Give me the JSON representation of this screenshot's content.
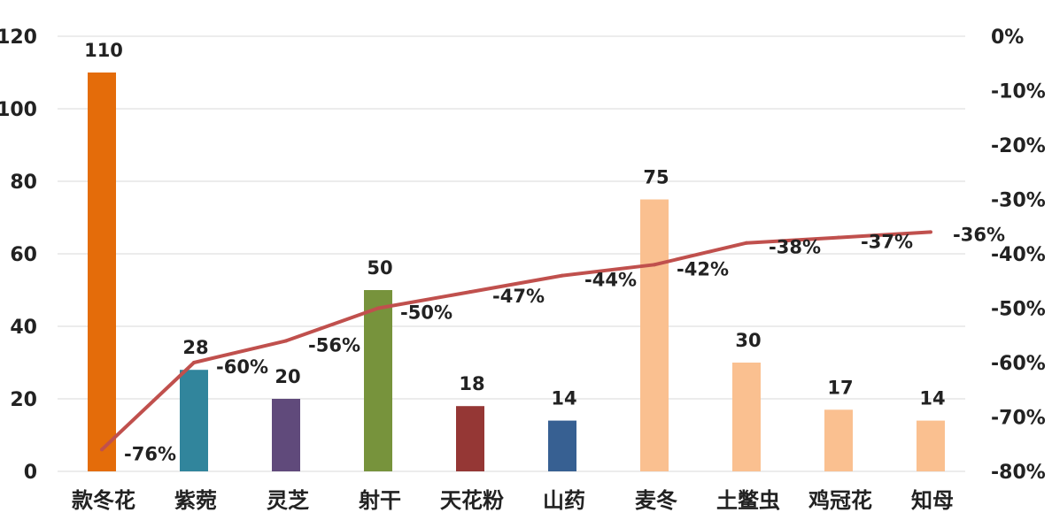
{
  "chart_data": {
    "type": "bar",
    "categories": [
      "款冬花",
      "紫菀",
      "灵芝",
      "射干",
      "天花粉",
      "山药",
      "麦冬",
      "土鳖虫",
      "鸡冠花",
      "知母"
    ],
    "series": [
      {
        "type": "bar",
        "axis": "left",
        "values": [
          110,
          28,
          20,
          50,
          18,
          14,
          75,
          30,
          17,
          14
        ],
        "value_labels": [
          "110",
          "28",
          "20",
          "50",
          "18",
          "14",
          "75",
          "30",
          "17",
          "14"
        ],
        "colors": [
          "#e46c0a",
          "#31859c",
          "#604a7b",
          "#77933c",
          "#953735",
          "#376092",
          "#fac090",
          "#fac090",
          "#fac090",
          "#fac090"
        ]
      },
      {
        "type": "line",
        "axis": "right",
        "values": [
          -76,
          -60,
          -56,
          -50,
          -47,
          -44,
          -42,
          -38,
          -37,
          -36
        ],
        "value_labels": [
          "-76%",
          "-60%",
          "-56%",
          "-50%",
          "-47%",
          "-44%",
          "-42%",
          "-38%",
          "-37%",
          "-36%"
        ],
        "color": "#c0504d"
      }
    ],
    "y_left": {
      "min": 0,
      "max": 120,
      "ticks": [
        "0",
        "20",
        "40",
        "60",
        "80",
        "100",
        "120"
      ]
    },
    "y_right": {
      "min": -80,
      "max": 0,
      "ticks": [
        "-80%",
        "-70%",
        "-60%",
        "-50%",
        "-40%",
        "-30%",
        "-20%",
        "-10%",
        "0%"
      ]
    },
    "grid": true,
    "title": "",
    "xlabel": "",
    "ylabel": ""
  }
}
